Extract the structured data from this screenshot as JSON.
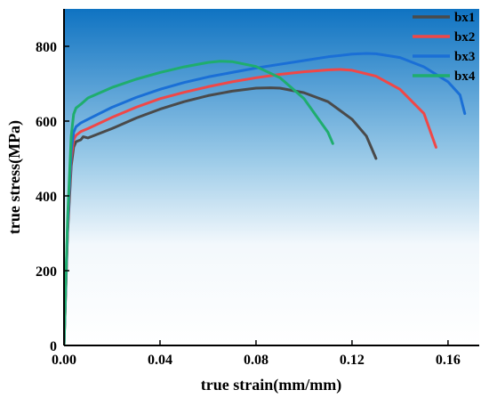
{
  "chart_data": {
    "type": "line",
    "title": "",
    "xlabel": "true strain(mm/mm)",
    "ylabel": "true stress(MPa)",
    "xlim": [
      0,
      0.173
    ],
    "ylim": [
      0,
      900
    ],
    "xticks": [
      0.0,
      0.04,
      0.08,
      0.12,
      0.16
    ],
    "xtick_labels": [
      "0.00",
      "0.04",
      "0.08",
      "0.12",
      "0.16"
    ],
    "yticks": [
      0,
      200,
      400,
      600,
      800
    ],
    "ytick_labels": [
      "0",
      "200",
      "400",
      "600",
      "800"
    ],
    "legend_position": "top-right",
    "grid": false,
    "background": "gradient: blue (top) to white (bottom)",
    "series": [
      {
        "name": "bx1",
        "color": "#4a4a4a",
        "x": [
          0,
          0.0015,
          0.003,
          0.004,
          0.005,
          0.007,
          0.008,
          0.01,
          0.02,
          0.03,
          0.04,
          0.05,
          0.06,
          0.07,
          0.08,
          0.086,
          0.09,
          0.1,
          0.11,
          0.12,
          0.126,
          0.13
        ],
        "y": [
          0,
          300,
          480,
          530,
          545,
          550,
          558,
          555,
          580,
          608,
          632,
          652,
          668,
          680,
          688,
          689,
          688,
          676,
          652,
          605,
          560,
          500
        ]
      },
      {
        "name": "bx2",
        "color": "#f04747",
        "x": [
          0,
          0.0015,
          0.003,
          0.004,
          0.005,
          0.007,
          0.01,
          0.02,
          0.03,
          0.04,
          0.05,
          0.06,
          0.07,
          0.08,
          0.09,
          0.1,
          0.11,
          0.115,
          0.12,
          0.13,
          0.14,
          0.15,
          0.155
        ],
        "y": [
          0,
          310,
          500,
          550,
          562,
          572,
          580,
          610,
          637,
          660,
          677,
          692,
          705,
          716,
          725,
          732,
          737,
          738,
          736,
          720,
          685,
          620,
          530
        ]
      },
      {
        "name": "bx3",
        "color": "#1a6fd6",
        "x": [
          0,
          0.0015,
          0.003,
          0.004,
          0.005,
          0.007,
          0.01,
          0.02,
          0.03,
          0.04,
          0.05,
          0.06,
          0.07,
          0.08,
          0.09,
          0.1,
          0.11,
          0.12,
          0.126,
          0.13,
          0.14,
          0.15,
          0.16,
          0.165,
          0.167
        ],
        "y": [
          0,
          320,
          520,
          570,
          585,
          595,
          605,
          637,
          663,
          685,
          703,
          718,
          730,
          742,
          752,
          762,
          772,
          779,
          781,
          780,
          770,
          745,
          705,
          670,
          620
        ]
      },
      {
        "name": "bx4",
        "color": "#1fad6e",
        "x": [
          0,
          0.0015,
          0.003,
          0.004,
          0.005,
          0.007,
          0.01,
          0.02,
          0.03,
          0.04,
          0.05,
          0.06,
          0.065,
          0.07,
          0.08,
          0.09,
          0.1,
          0.105,
          0.11,
          0.112
        ],
        "y": [
          0,
          340,
          560,
          618,
          635,
          645,
          662,
          690,
          712,
          730,
          745,
          757,
          760,
          759,
          746,
          716,
          660,
          615,
          570,
          540
        ]
      }
    ]
  }
}
